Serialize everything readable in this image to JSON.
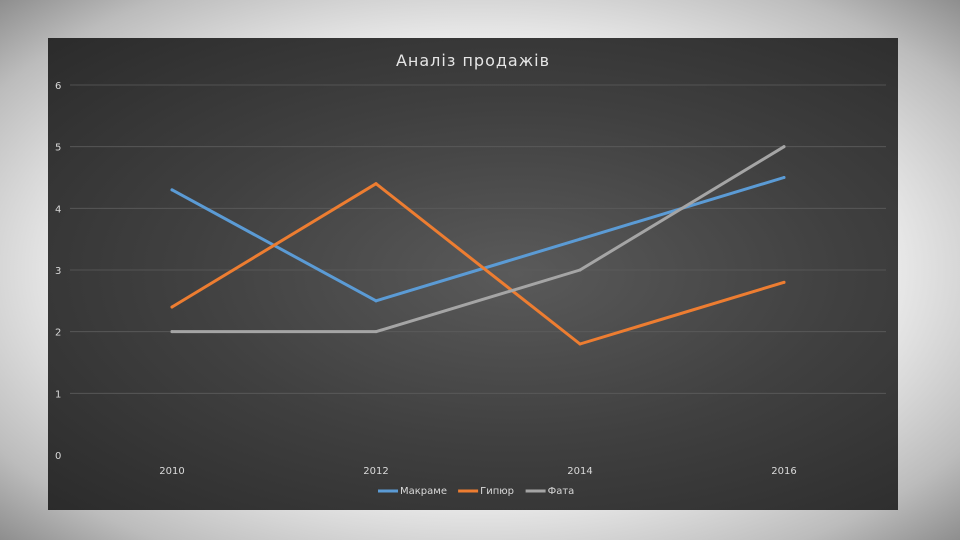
{
  "chart_data": {
    "type": "line",
    "title": "Аналіз продажів",
    "categories": [
      "2010",
      "2012",
      "2014",
      "2016"
    ],
    "ylim": [
      0,
      6
    ],
    "yticks": [
      "0",
      "1",
      "2",
      "3",
      "4",
      "5",
      "6"
    ],
    "grid": true,
    "legend_position": "bottom",
    "series": [
      {
        "name": "Макраме",
        "color": "#5b9bd5",
        "values": [
          4.3,
          2.5,
          3.5,
          4.5
        ]
      },
      {
        "name": "Гипюр",
        "color": "#ed7d31",
        "values": [
          2.4,
          4.4,
          1.8,
          2.8
        ]
      },
      {
        "name": "Фата",
        "color": "#a5a5a5",
        "values": [
          2.0,
          2.0,
          3.0,
          5.0
        ]
      }
    ]
  }
}
